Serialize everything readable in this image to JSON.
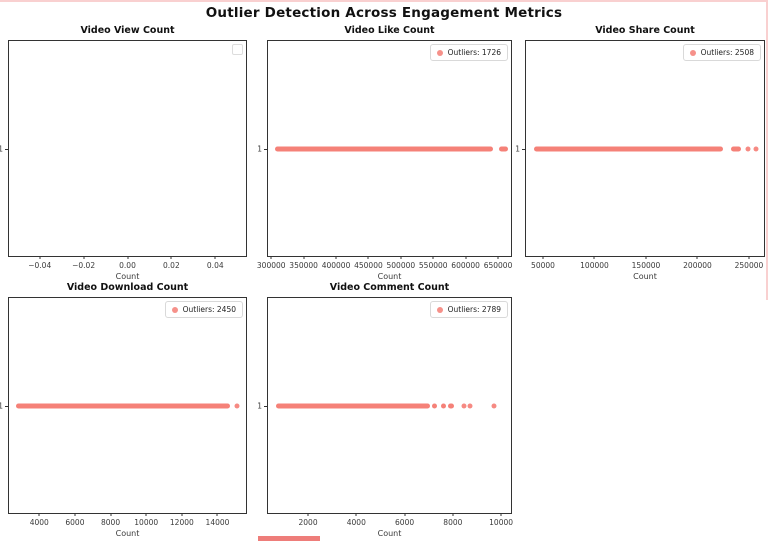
{
  "figure": {
    "title": "Outlier Detection Across Engagement Metrics",
    "colors": {
      "outlier": "#f4766d",
      "axis": "#333333",
      "text": "#3a3a3a",
      "legend_border": "#d9d9d9",
      "window_border_pink": "#f9d0d0",
      "taskbar_fragment": "#ee7d7a"
    }
  },
  "chart_data": [
    {
      "type": "scatter",
      "title": "Video View Count",
      "xlabel": "Count",
      "ytick_label": "1",
      "xlim": [
        -0.054,
        0.054
      ],
      "xticks": [
        -0.04,
        -0.02,
        0,
        0.02,
        0.04
      ],
      "xtick_labels": [
        "−0.04",
        "−0.02",
        "0.00",
        "0.02",
        "0.04"
      ],
      "legend_label": "",
      "legend_empty": true,
      "grid": false,
      "segments": [],
      "dots": []
    },
    {
      "type": "scatter",
      "title": "Video Like Count",
      "xlabel": "Count",
      "ytick_label": "1",
      "y": 1,
      "xlim": [
        295000,
        670000
      ],
      "xticks": [
        300000,
        350000,
        400000,
        450000,
        500000,
        550000,
        600000,
        650000
      ],
      "xtick_labels": [
        "300000",
        "350000",
        "400000",
        "450000",
        "500000",
        "550000",
        "600000",
        "650000"
      ],
      "legend_label": "Outliers: 1726",
      "outlier_count": 1726,
      "grid": false,
      "segments": [
        [
          306000,
          642000
        ],
        [
          652000,
          665000
        ]
      ],
      "dots": []
    },
    {
      "type": "scatter",
      "title": "Video Share Count",
      "xlabel": "Count",
      "ytick_label": "1",
      "y": 1,
      "xlim": [
        33500,
        264600
      ],
      "xticks": [
        50000,
        100000,
        150000,
        200000,
        250000
      ],
      "xtick_labels": [
        "50000",
        "100000",
        "150000",
        "200000",
        "250000"
      ],
      "legend_label": "Outliers: 2508",
      "outlier_count": 2508,
      "grid": false,
      "segments": [
        [
          41000,
          225000
        ],
        [
          232500,
          242000
        ]
      ],
      "dots": [
        249000,
        257000
      ]
    },
    {
      "type": "scatter",
      "title": "Video Download Count",
      "xlabel": "Count",
      "ytick_label": "1",
      "y": 1,
      "xlim": [
        2300,
        15600
      ],
      "xticks": [
        4000,
        6000,
        8000,
        10000,
        12000,
        14000
      ],
      "xtick_labels": [
        "4000",
        "6000",
        "8000",
        "10000",
        "12000",
        "14000"
      ],
      "legend_label": "Outliers: 2450",
      "outlier_count": 2450,
      "grid": false,
      "segments": [
        [
          2700,
          14730
        ]
      ],
      "dots": [
        15120
      ]
    },
    {
      "type": "scatter",
      "title": "Video Comment Count",
      "xlabel": "Count",
      "ytick_label": "1",
      "y": 1,
      "xlim": [
        340,
        10410
      ],
      "xticks": [
        2000,
        4000,
        6000,
        8000,
        10000
      ],
      "xtick_labels": [
        "2000",
        "4000",
        "6000",
        "8000",
        "10000"
      ],
      "legend_label": "Outliers: 2789",
      "outlier_count": 2789,
      "grid": false,
      "segments": [
        [
          680,
          7050
        ],
        [
          7150,
          7350
        ],
        [
          7500,
          7700
        ],
        [
          7800,
          8050
        ]
      ],
      "dots": [
        8480,
        8700,
        9700
      ]
    }
  ]
}
